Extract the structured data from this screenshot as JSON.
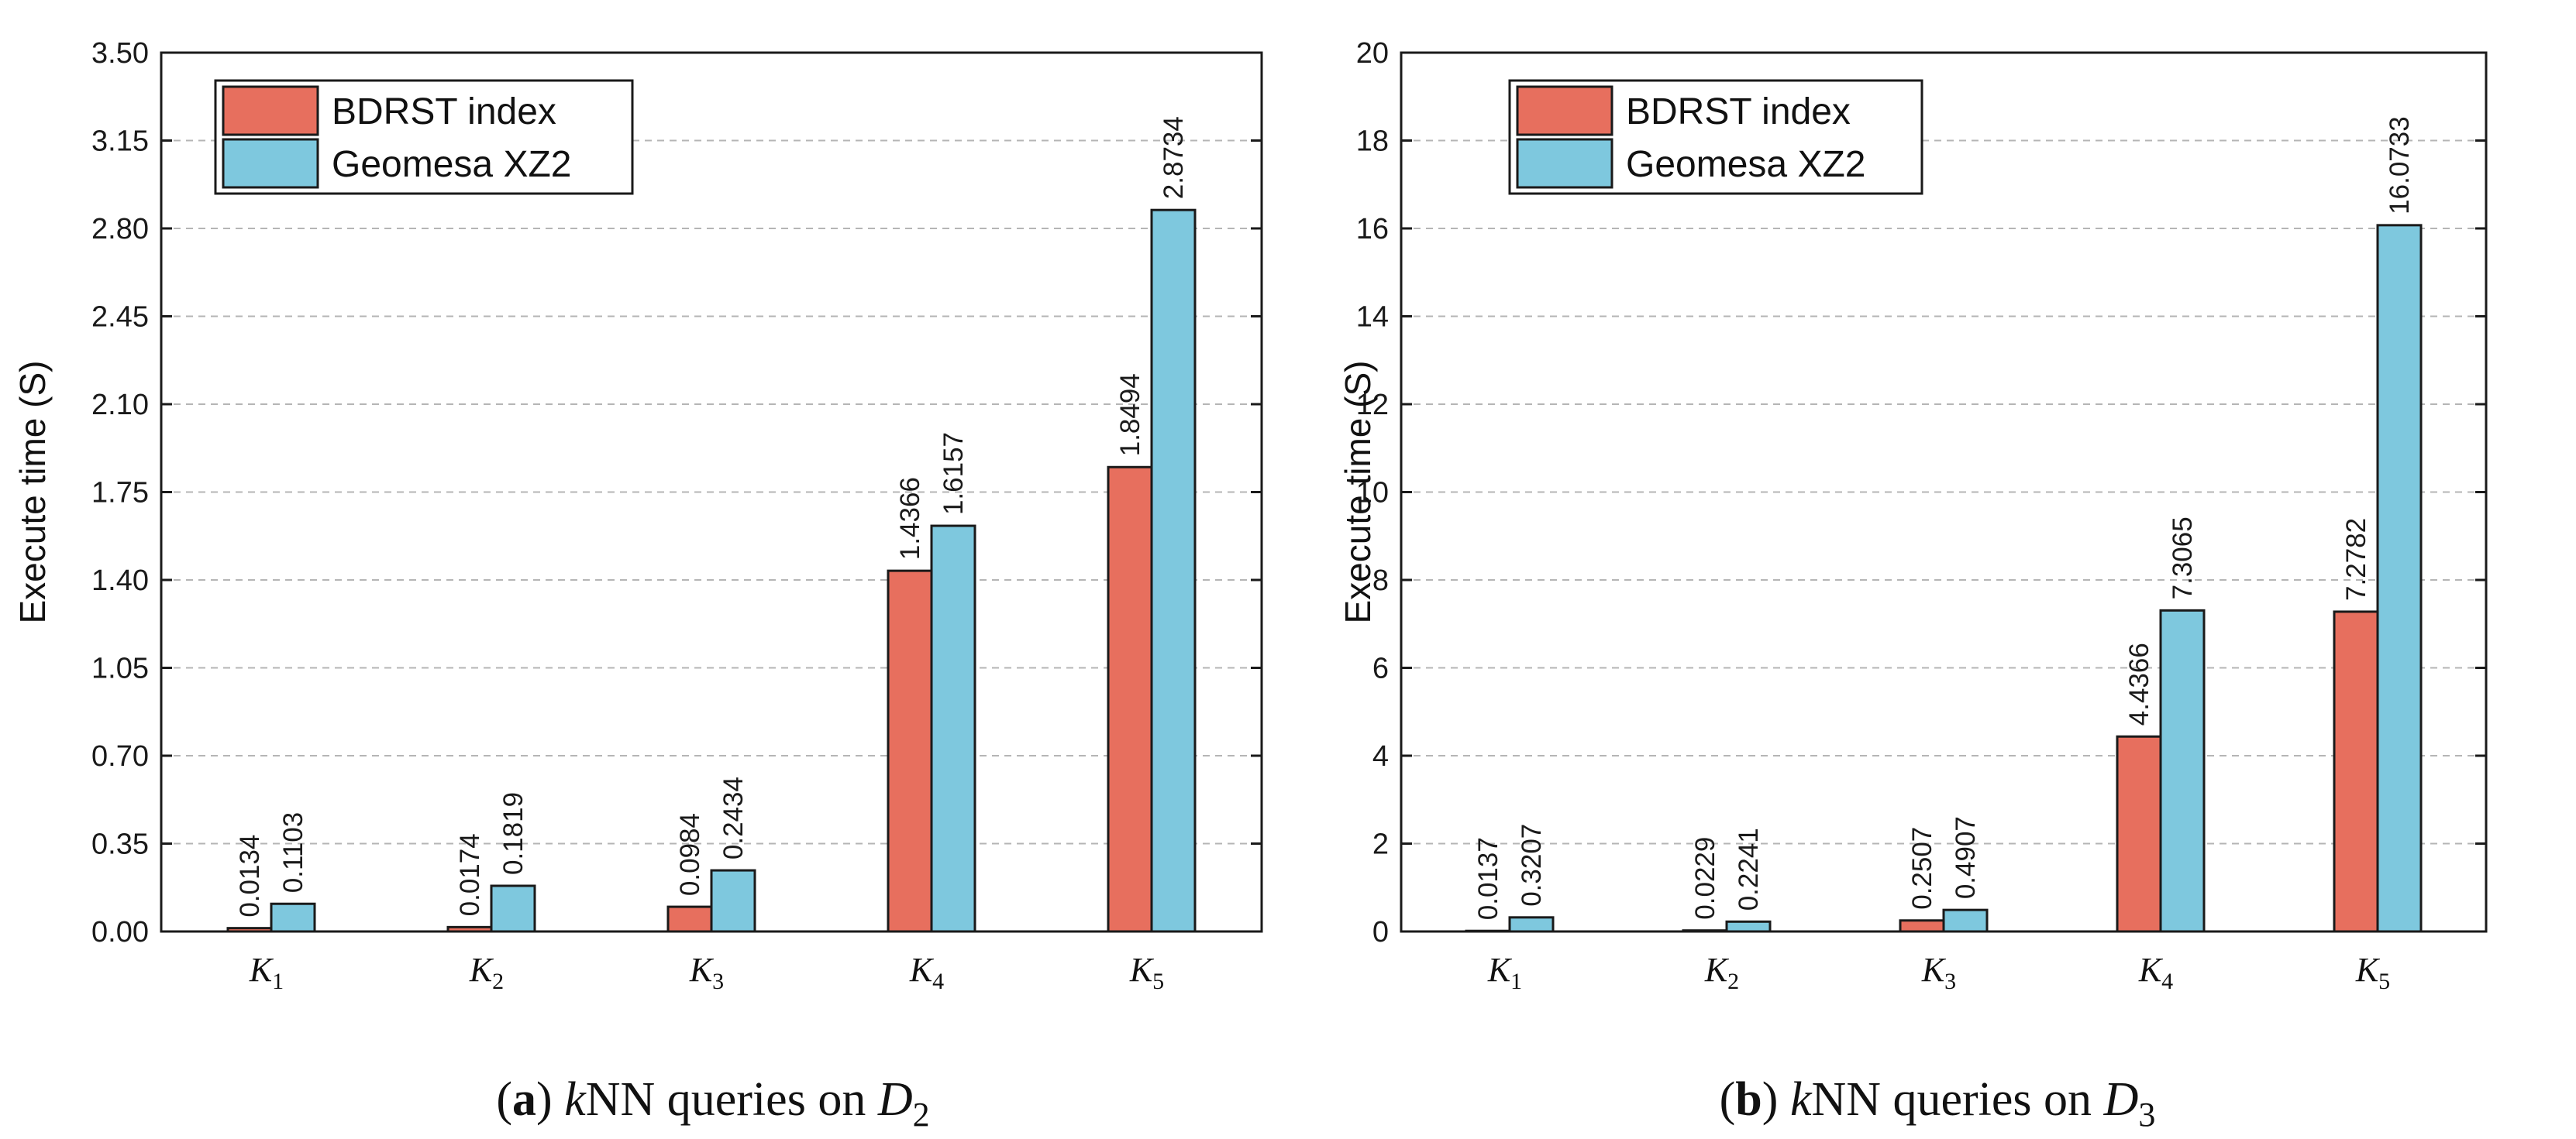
{
  "chart_data": [
    {
      "type": "bar",
      "panel": "a",
      "ylabel": "Execute time (S)",
      "ylim": [
        0,
        3.5
      ],
      "yticks": [
        "0.00",
        "0.35",
        "0.70",
        "1.05",
        "1.40",
        "1.75",
        "2.10",
        "2.45",
        "2.80",
        "3.15",
        "3.50"
      ],
      "categories": [
        {
          "base": "K",
          "sub": "1"
        },
        {
          "base": "K",
          "sub": "2"
        },
        {
          "base": "K",
          "sub": "3"
        },
        {
          "base": "K",
          "sub": "4"
        },
        {
          "base": "K",
          "sub": "5"
        }
      ],
      "series": [
        {
          "name": "BDRST index",
          "values": [
            0.0134,
            0.0174,
            0.0984,
            1.4366,
            1.8494
          ],
          "labels": [
            "0.0134",
            "0.0174",
            "0.0984",
            "1.4366",
            "1.8494"
          ]
        },
        {
          "name": "Geomesa XZ2",
          "values": [
            0.1103,
            0.1819,
            0.2434,
            1.6157,
            2.8734
          ],
          "labels": [
            "0.1103",
            "0.1819",
            "0.2434",
            "1.6157",
            "2.8734"
          ]
        }
      ],
      "caption": {
        "tag": "a",
        "k": "k",
        "text": "NN queries on ",
        "dataset": "D",
        "dataset_sub": "2"
      },
      "grid": true,
      "legend": "top-left"
    },
    {
      "type": "bar",
      "panel": "b",
      "ylabel": "Execute time (S)",
      "ylim": [
        0,
        20
      ],
      "yticks": [
        "0",
        "2",
        "4",
        "6",
        "8",
        "10",
        "12",
        "14",
        "16",
        "18",
        "20"
      ],
      "categories": [
        {
          "base": "K",
          "sub": "1"
        },
        {
          "base": "K",
          "sub": "2"
        },
        {
          "base": "K",
          "sub": "3"
        },
        {
          "base": "K",
          "sub": "4"
        },
        {
          "base": "K",
          "sub": "5"
        }
      ],
      "series": [
        {
          "name": "BDRST index",
          "values": [
            0.0137,
            0.0229,
            0.2507,
            4.4366,
            7.2782
          ],
          "labels": [
            "0.0137",
            "0.0229",
            "0.2507",
            "4.4366",
            "7.2782"
          ]
        },
        {
          "name": "Geomesa XZ2",
          "values": [
            0.3207,
            0.2241,
            0.4907,
            7.3065,
            16.0733
          ],
          "labels": [
            "0.3207",
            "0.2241",
            "0.4907",
            "7.3065",
            "16.0733"
          ]
        }
      ],
      "caption": {
        "tag": "b",
        "k": "k",
        "text": "NN queries on ",
        "dataset": "D",
        "dataset_sub": "3"
      },
      "grid": true,
      "legend": "top-left"
    }
  ],
  "colors": {
    "bdrst": "#e76f5e",
    "geomesa": "#7ec8de"
  }
}
